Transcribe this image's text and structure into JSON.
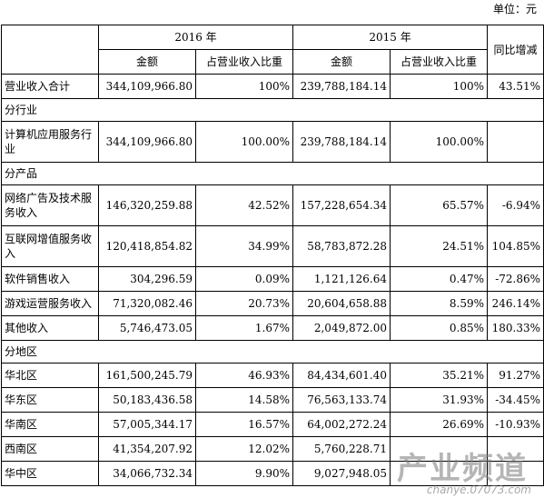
{
  "unit_label": "单位：元",
  "header": {
    "year_2016": "2016 年",
    "year_2015": "2015 年",
    "yoy_change": "同比增减",
    "amount_2016": "金额",
    "ratio_2016": "占营业收入比重",
    "amount_2015": "金额",
    "ratio_2015": "占营业收入比重"
  },
  "total": {
    "label": "营业收入合计",
    "amount_2016": "344,109,966.80",
    "ratio_2016": "100%",
    "amount_2015": "239,788,184.14",
    "ratio_2015": "100%",
    "yoy": "43.51%"
  },
  "sections": {
    "by_industry": "分行业",
    "by_product": "分产品",
    "by_region": "分地区"
  },
  "industry_rows": [
    {
      "label": "计算机应用服务行业",
      "amount_2016": "344,109,966.80",
      "ratio_2016": "100.00%",
      "amount_2015": "239,788,184.14",
      "ratio_2015": "100.00%",
      "yoy": ""
    }
  ],
  "product_rows": [
    {
      "label": "网络广告及技术服务收入",
      "amount_2016": "146,320,259.88",
      "ratio_2016": "42.52%",
      "amount_2015": "157,228,654.34",
      "ratio_2015": "65.57%",
      "yoy": "-6.94%"
    },
    {
      "label": "互联网增值服务收入",
      "amount_2016": "120,418,854.82",
      "ratio_2016": "34.99%",
      "amount_2015": "58,783,872.28",
      "ratio_2015": "24.51%",
      "yoy": "104.85%"
    },
    {
      "label": "软件销售收入",
      "amount_2016": "304,296.59",
      "ratio_2016": "0.09%",
      "amount_2015": "1,121,126.64",
      "ratio_2015": "0.47%",
      "yoy": "-72.86%"
    },
    {
      "label": "游戏运营服务收入",
      "amount_2016": "71,320,082.46",
      "ratio_2016": "20.73%",
      "amount_2015": "20,604,658.88",
      "ratio_2015": "8.59%",
      "yoy": "246.14%"
    },
    {
      "label": "其他收入",
      "amount_2016": "5,746,473.05",
      "ratio_2016": "1.67%",
      "amount_2015": "2,049,872.00",
      "ratio_2015": "0.85%",
      "yoy": "180.33%"
    }
  ],
  "region_rows": [
    {
      "label": "华北区",
      "amount_2016": "161,500,245.79",
      "ratio_2016": "46.93%",
      "amount_2015": "84,434,601.40",
      "ratio_2015": "35.21%",
      "yoy": "91.27%"
    },
    {
      "label": "华东区",
      "amount_2016": "50,183,436.58",
      "ratio_2016": "14.58%",
      "amount_2015": "76,563,133.74",
      "ratio_2015": "31.93%",
      "yoy": "-34.45%"
    },
    {
      "label": "华南区",
      "amount_2016": "57,005,344.17",
      "ratio_2016": "16.57%",
      "amount_2015": "64,002,272.24",
      "ratio_2015": "26.69%",
      "yoy": "-10.93%"
    },
    {
      "label": "西南区",
      "amount_2016": "41,354,207.92",
      "ratio_2016": "12.02%",
      "amount_2015": "5,760,228.71",
      "ratio_2015": "",
      "yoy": ""
    },
    {
      "label": "华中区",
      "amount_2016": "34,066,732.34",
      "ratio_2016": "9.90%",
      "amount_2015": "9,027,948.05",
      "ratio_2015": "",
      "yoy": ""
    }
  ],
  "watermark": {
    "cn": "产业频道",
    "en": "chanye.07073.com"
  }
}
